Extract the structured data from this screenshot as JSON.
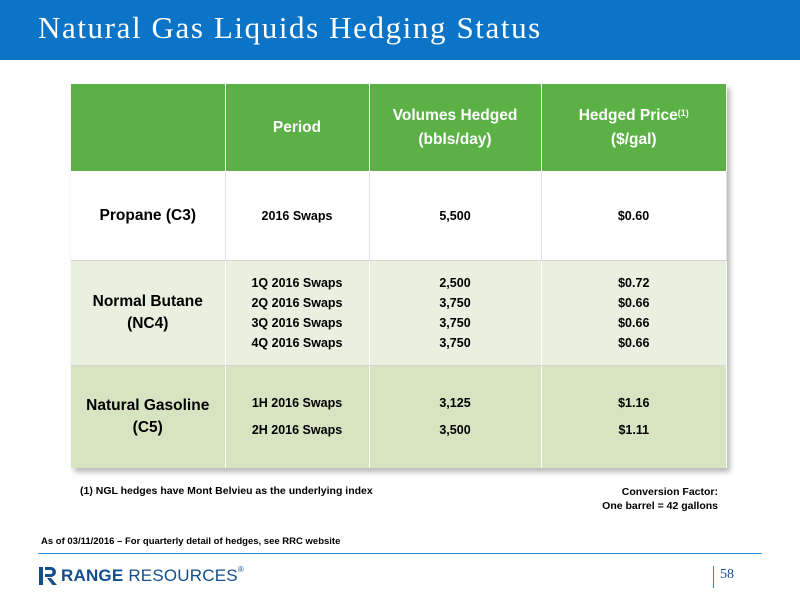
{
  "slide": {
    "title": "Natural Gas Liquids Hedging Status",
    "page_number": "58"
  },
  "colors": {
    "header_bar": "#0b74c7",
    "table_header": "#5cb146",
    "row_butane": "#e9f0df",
    "row_gasoline": "#d7e4c2",
    "brand": "#124f8c"
  },
  "table": {
    "headers": {
      "period": "Period",
      "volumes_line1": "Volumes Hedged",
      "volumes_line2": "(bbls/day)",
      "price_line1": "Hedged Price",
      "price_sup": "(1)",
      "price_line2": "($/gal)"
    },
    "rows": [
      {
        "product_line1": "Propane (C3)",
        "product_line2": "",
        "periods": [
          "2016 Swaps"
        ],
        "volumes": [
          "5,500"
        ],
        "prices": [
          "$0.60"
        ]
      },
      {
        "product_line1": "Normal Butane",
        "product_line2": "(NC4)",
        "periods": [
          "1Q 2016 Swaps",
          "2Q 2016 Swaps",
          "3Q 2016 Swaps",
          "4Q 2016 Swaps"
        ],
        "volumes": [
          "2,500",
          "3,750",
          "3,750",
          "3,750"
        ],
        "prices": [
          "$0.72",
          "$0.66",
          "$0.66",
          "$0.66"
        ]
      },
      {
        "product_line1": "Natural Gasoline",
        "product_line2": "(C5)",
        "periods": [
          "1H 2016 Swaps",
          "2H 2016 Swaps"
        ],
        "volumes": [
          "3,125",
          "3,500"
        ],
        "prices": [
          "$1.16",
          "$1.11"
        ]
      }
    ]
  },
  "notes": {
    "footnote": "(1) NGL hedges have Mont Belvieu as the underlying index",
    "conversion_line1": "Conversion Factor:",
    "conversion_line2": "One barrel = 42 gallons",
    "as_of": "As of 03/11/2016 – For quarterly detail of hedges, see RRC website"
  },
  "footer": {
    "logo_icon": "range-resources-r-icon",
    "logo_range": "RANGE",
    "logo_resources": " RESOURCES",
    "logo_reg": "®"
  }
}
